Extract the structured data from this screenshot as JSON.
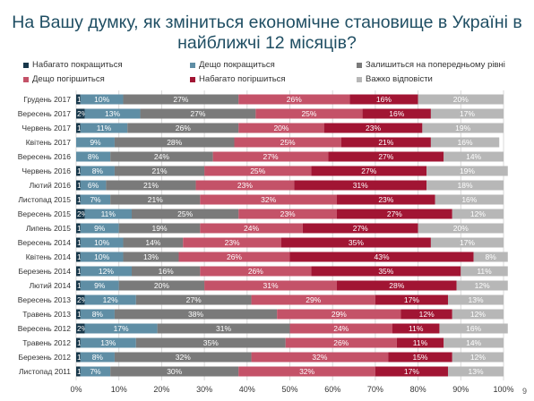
{
  "title_line1": "На Вашу думку, як зміниться економічне становище в Україні в",
  "title_line2": "найближчі 12 місяців?",
  "page_number": "9",
  "chart_data": {
    "type": "bar",
    "orientation": "horizontal-stacked-100",
    "legend_position": "top",
    "grid": true,
    "xlim": [
      0,
      100
    ],
    "x_ticks": [
      "0%",
      "10%",
      "20%",
      "30%",
      "40%",
      "50%",
      "60%",
      "70%",
      "80%",
      "90%",
      "100%"
    ],
    "series": [
      {
        "name": "Набагато покращиться",
        "color": "#17374a"
      },
      {
        "name": "Дещо покращиться",
        "color": "#5f8ea5"
      },
      {
        "name": "Залишиться на попередньому рівні",
        "color": "#7a7a7a"
      },
      {
        "name": "Дещо погіршиться",
        "color": "#c45268"
      },
      {
        "name": "Набагато погіршиться",
        "color": "#a11533"
      },
      {
        "name": "Важко відповісти",
        "color": "#b7b7b7"
      }
    ],
    "categories": [
      "Грудень 2017",
      "Вересень 2017",
      "Червень 2017",
      "Квітень 2017",
      "Вересень 2016",
      "Червень 2016",
      "Лютий 2016",
      "Листопад 2015",
      "Вересень 2015",
      "Липень 2015",
      "Вересень 2014",
      "Квітень 2014",
      "Березень 2014",
      "Лютий 2014",
      "Вересень 2013",
      "Травень 2013",
      "Вересень 2012",
      "Травень 2012",
      "Березень 2012",
      "Листопад 2011"
    ],
    "values": [
      [
        1,
        10,
        27,
        26,
        16,
        20
      ],
      [
        2,
        13,
        27,
        25,
        16,
        17
      ],
      [
        1,
        11,
        26,
        20,
        23,
        19
      ],
      [
        0,
        9,
        28,
        25,
        21,
        16
      ],
      [
        0,
        8,
        24,
        27,
        27,
        14
      ],
      [
        1,
        8,
        21,
        25,
        27,
        19
      ],
      [
        1,
        6,
        21,
        23,
        31,
        18
      ],
      [
        1,
        7,
        21,
        32,
        23,
        16
      ],
      [
        2,
        11,
        25,
        23,
        27,
        12
      ],
      [
        1,
        9,
        19,
        24,
        27,
        20
      ],
      [
        1,
        10,
        14,
        23,
        35,
        17
      ],
      [
        1,
        10,
        13,
        26,
        43,
        8
      ],
      [
        1,
        12,
        16,
        26,
        35,
        11
      ],
      [
        1,
        9,
        20,
        31,
        28,
        12
      ],
      [
        2,
        12,
        27,
        29,
        17,
        13
      ],
      [
        1,
        8,
        38,
        29,
        12,
        12
      ],
      [
        2,
        17,
        31,
        24,
        11,
        16
      ],
      [
        1,
        13,
        35,
        26,
        11,
        14
      ],
      [
        1,
        8,
        32,
        32,
        15,
        12
      ],
      [
        1,
        7,
        30,
        32,
        17,
        13
      ]
    ],
    "labels": [
      [
        "1%",
        "10%",
        "27%",
        "26%",
        "16%",
        "20%"
      ],
      [
        "2%",
        "13%",
        "27%",
        "25%",
        "16%",
        "17%"
      ],
      [
        "1%",
        "11%",
        "26%",
        "20%",
        "23%",
        "19%"
      ],
      [
        "",
        "9%",
        "28%",
        "25%",
        "21%",
        "16%"
      ],
      [
        "",
        "8%",
        "24%",
        "27%",
        "27%",
        "14%"
      ],
      [
        "1%",
        "8%",
        "21%",
        "25%",
        "27%",
        "19%"
      ],
      [
        "1%",
        "6%",
        "21%",
        "23%",
        "31%",
        "18%"
      ],
      [
        "1%",
        "7%",
        "21%",
        "32%",
        "23%",
        "16%"
      ],
      [
        "2%",
        "11%",
        "25%",
        "23%",
        "27%",
        "12%"
      ],
      [
        "1%",
        "9%",
        "19%",
        "24%",
        "27%",
        "20%"
      ],
      [
        "1%",
        "10%",
        "14%",
        "23%",
        "35%",
        "17%"
      ],
      [
        "1%",
        "10%",
        "13%",
        "26%",
        "43%",
        "8%"
      ],
      [
        "1%",
        "12%",
        "16%",
        "26%",
        "35%",
        "11%"
      ],
      [
        "1%",
        "9%",
        "20%",
        "31%",
        "28%",
        "12%"
      ],
      [
        "2%",
        "12%",
        "27%",
        "29%",
        "17%",
        "13%"
      ],
      [
        "1%",
        "8%",
        "38%",
        "29%",
        "12%",
        "12%"
      ],
      [
        "2%",
        "17%",
        "31%",
        "24%",
        "11%",
        "16%"
      ],
      [
        "1%",
        "13%",
        "35%",
        "26%",
        "11%",
        "14%"
      ],
      [
        "1%",
        "8%",
        "32%",
        "32%",
        "15%",
        "12%"
      ],
      [
        "1%",
        "7%",
        "30%",
        "32%",
        "17%",
        "13%"
      ]
    ]
  }
}
